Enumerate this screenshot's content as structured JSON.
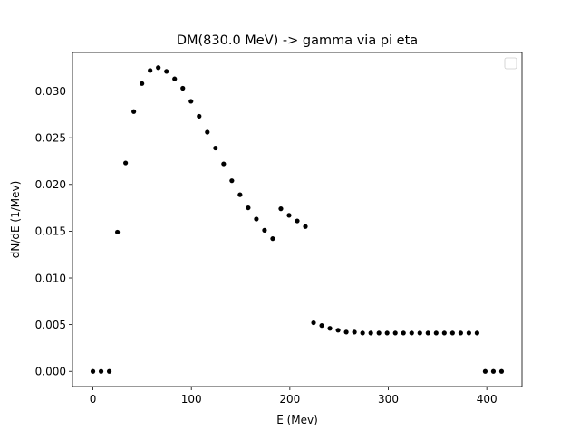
{
  "chart_data": {
    "type": "scatter",
    "title": "DM(830.0 MeV) -> gamma via pi eta",
    "xlabel": "E (Mev)",
    "ylabel": "dN/dE (1/Mev)",
    "xlim": [
      -20.75,
      435.75
    ],
    "ylim": [
      -0.001625,
      0.034125
    ],
    "xticks": [
      0,
      100,
      200,
      300,
      400
    ],
    "xtick_labels": [
      "0",
      "100",
      "200",
      "300",
      "400"
    ],
    "yticks": [
      0.0,
      0.005,
      0.01,
      0.015,
      0.02,
      0.025,
      0.03
    ],
    "ytick_labels": [
      "0.000",
      "0.005",
      "0.010",
      "0.015",
      "0.020",
      "0.025",
      "0.030"
    ],
    "grid": false,
    "legend": {
      "placement": "top-right",
      "entries": []
    },
    "marker_color": "#000000",
    "series": [
      {
        "name": "",
        "x": [
          0,
          8.3,
          16.6,
          24.9,
          33.2,
          41.5,
          49.8,
          58.1,
          66.4,
          74.7,
          83.0,
          91.3,
          99.6,
          107.9,
          116.2,
          124.5,
          132.8,
          141.1,
          149.4,
          157.7,
          166.0,
          174.3,
          182.6,
          190.9,
          199.2,
          207.5,
          215.8,
          224.1,
          232.4,
          240.7,
          249.0,
          257.3,
          265.6,
          273.9,
          282.2,
          290.5,
          298.8,
          307.1,
          315.4,
          323.7,
          332.0,
          340.3,
          348.6,
          356.9,
          365.2,
          373.5,
          381.8,
          390.1,
          398.4,
          406.7,
          415.0
        ],
        "y": [
          0.0,
          0.0,
          0.0,
          0.0149,
          0.0223,
          0.0278,
          0.0308,
          0.0322,
          0.0325,
          0.0321,
          0.0313,
          0.0303,
          0.0289,
          0.0273,
          0.0256,
          0.0239,
          0.0222,
          0.0204,
          0.0189,
          0.0175,
          0.0163,
          0.0151,
          0.0142,
          0.0174,
          0.0167,
          0.0161,
          0.0155,
          0.0052,
          0.0049,
          0.0046,
          0.0044,
          0.0042,
          0.0042,
          0.0041,
          0.0041,
          0.0041,
          0.0041,
          0.0041,
          0.0041,
          0.0041,
          0.0041,
          0.0041,
          0.0041,
          0.0041,
          0.0041,
          0.0041,
          0.0041,
          0.0041,
          0.0,
          0.0,
          0.0
        ]
      }
    ]
  }
}
